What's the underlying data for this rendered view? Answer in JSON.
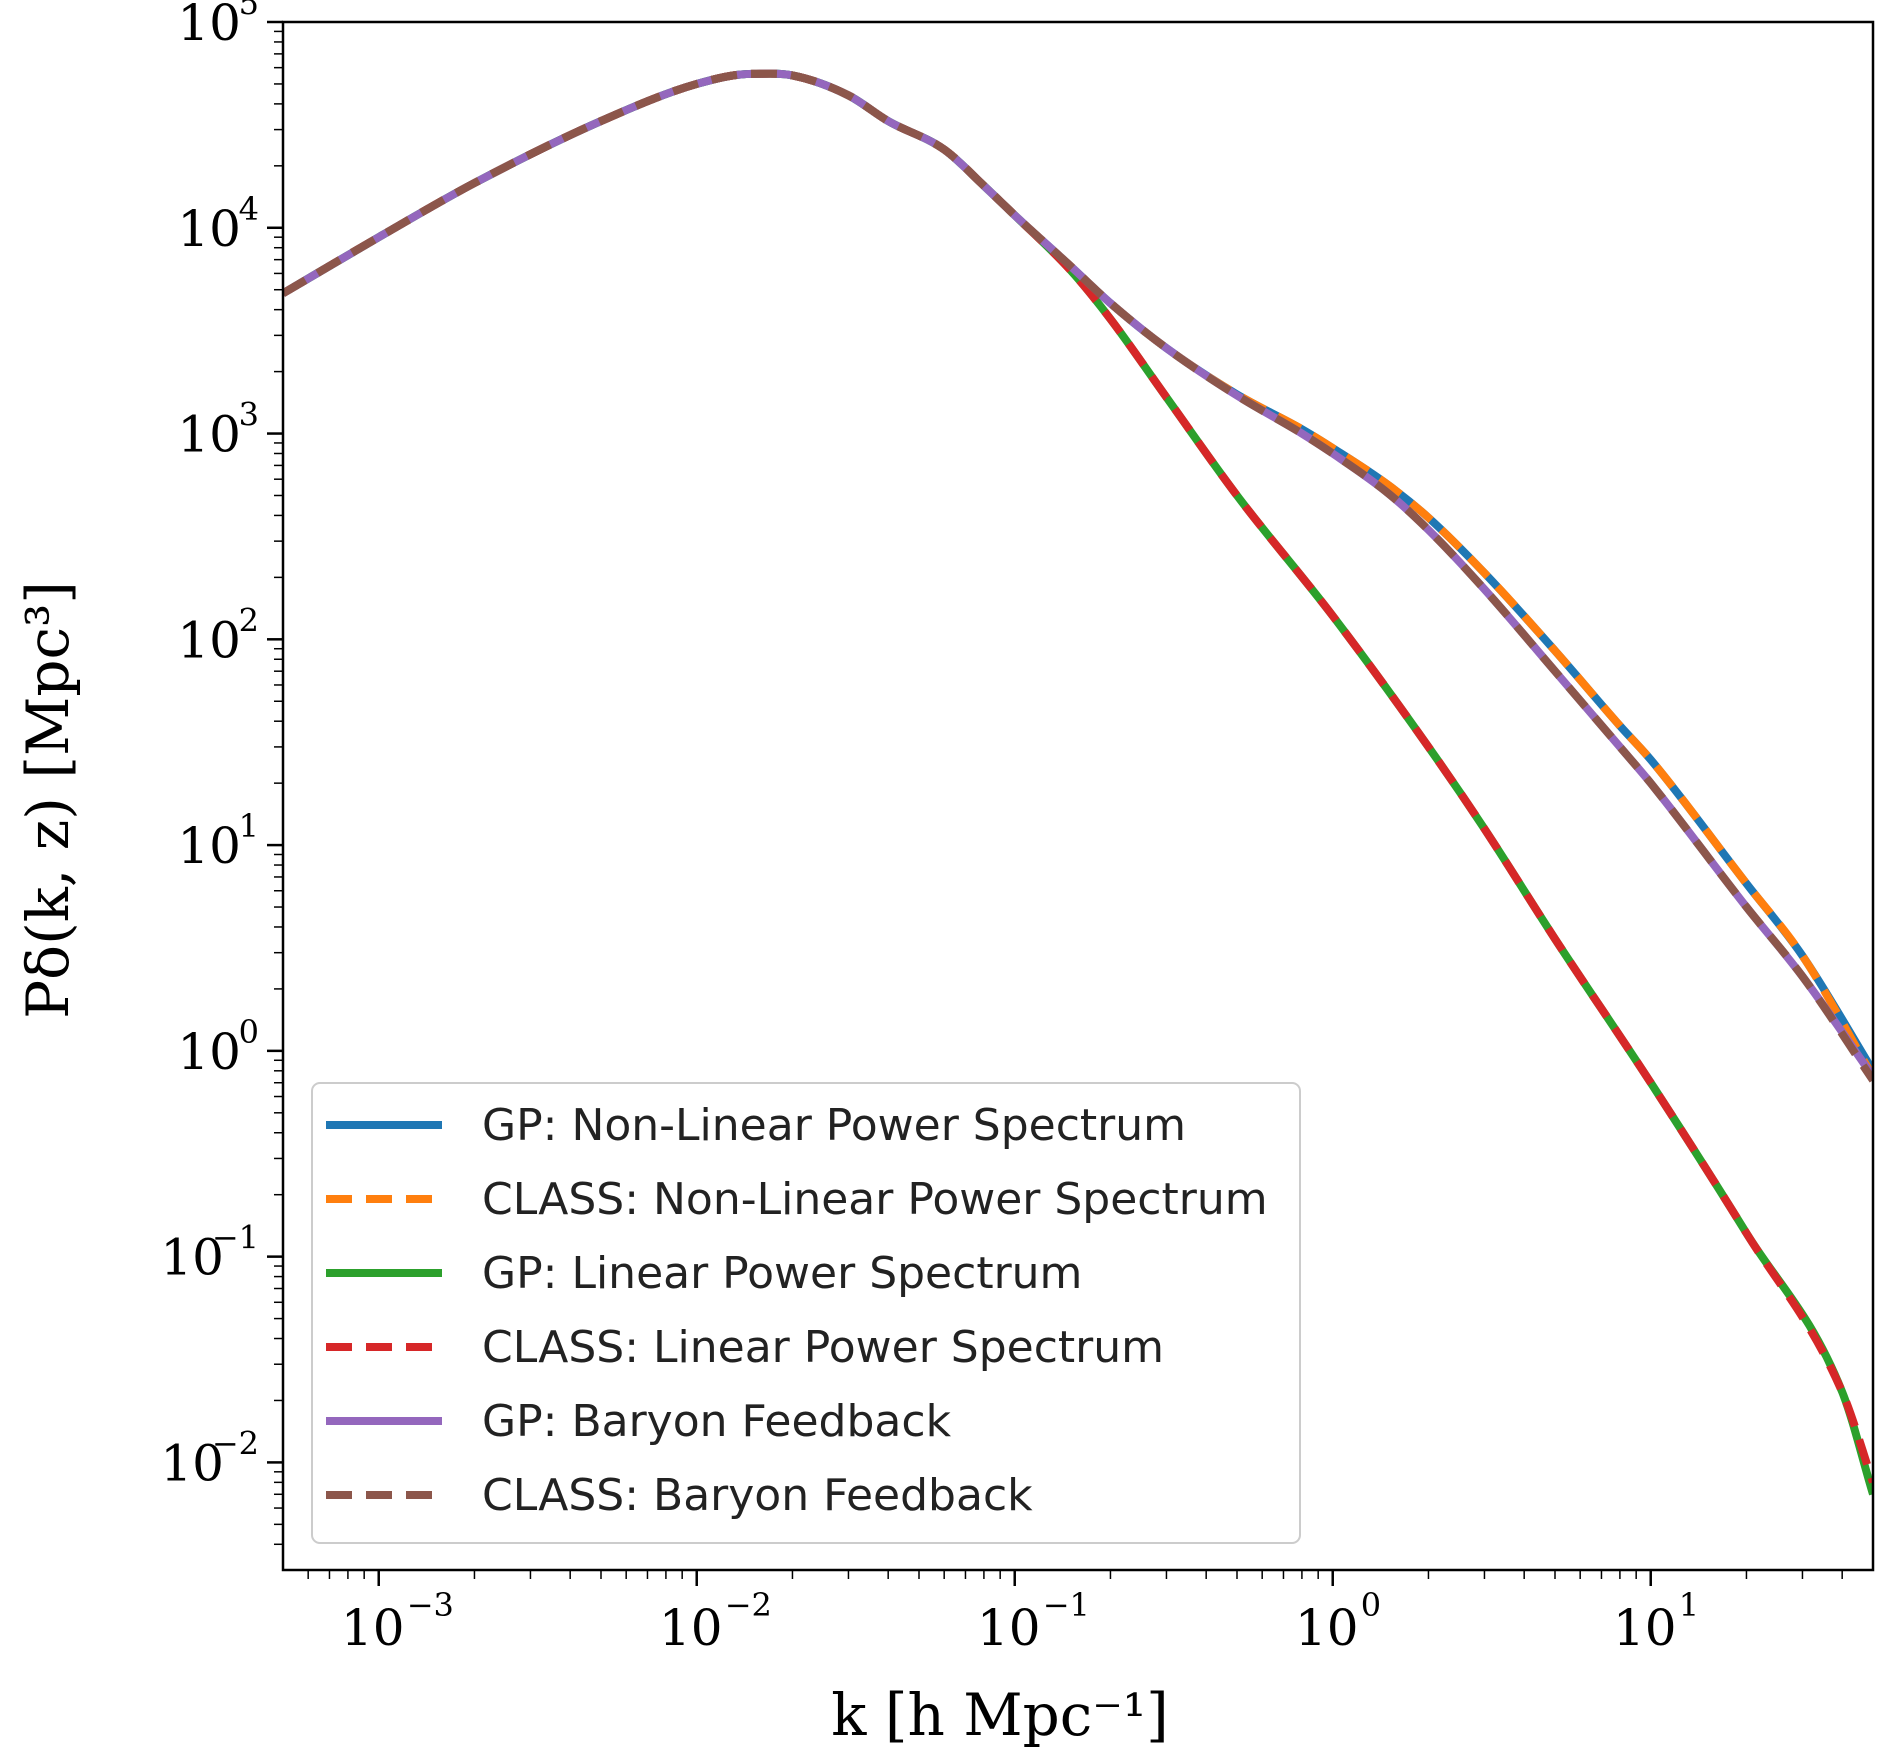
{
  "chart_data": {
    "type": "line",
    "title": "",
    "xlabel": "k [h Mpc⁻¹]",
    "ylabel": "Pδ(k, z) [Mpc³]",
    "xscale": "log",
    "yscale": "log",
    "xlim": [
      0.0005,
      50
    ],
    "ylim": [
      0.003,
      100000
    ],
    "grid": false,
    "legend_position": "lower-left",
    "x_ticks": [
      {
        "value": 0.001,
        "base": "10",
        "exp": "−3"
      },
      {
        "value": 0.01,
        "base": "10",
        "exp": "−2"
      },
      {
        "value": 0.1,
        "base": "10",
        "exp": "−1"
      },
      {
        "value": 1,
        "base": "10",
        "exp": "0"
      },
      {
        "value": 10,
        "base": "10",
        "exp": "1"
      }
    ],
    "y_ticks": [
      {
        "value": 100000,
        "base": "10",
        "exp": "5"
      },
      {
        "value": 10000,
        "base": "10",
        "exp": "4"
      },
      {
        "value": 1000,
        "base": "10",
        "exp": "3"
      },
      {
        "value": 100,
        "base": "10",
        "exp": "2"
      },
      {
        "value": 10,
        "base": "10",
        "exp": "1"
      },
      {
        "value": 1,
        "base": "10",
        "exp": "0"
      },
      {
        "value": 0.1,
        "base": "10",
        "exp": "−1"
      },
      {
        "value": 0.01,
        "base": "10",
        "exp": "−2"
      }
    ],
    "series": [
      {
        "name": "GP: Non-Linear Power Spectrum",
        "color": "#1f77b4",
        "style": "solid",
        "x": [
          0.0005,
          0.001,
          0.002,
          0.005,
          0.01,
          0.015,
          0.02,
          0.03,
          0.04,
          0.06,
          0.08,
          0.1,
          0.15,
          0.2,
          0.3,
          0.5,
          0.8,
          1,
          1.5,
          2,
          3,
          5,
          8,
          10,
          20,
          30,
          50
        ],
        "y": [
          4800,
          9000,
          16500,
          33000,
          50000,
          56000,
          55000,
          44000,
          33000,
          24000,
          16000,
          11500,
          6500,
          4300,
          2600,
          1550,
          1050,
          850,
          560,
          390,
          210,
          88,
          38,
          26,
          6.5,
          2.9,
          0.8
        ]
      },
      {
        "name": "CLASS: Non-Linear Power Spectrum",
        "color": "#ff7f0e",
        "style": "dashed",
        "x": [
          0.0005,
          0.001,
          0.002,
          0.005,
          0.01,
          0.015,
          0.02,
          0.03,
          0.04,
          0.06,
          0.08,
          0.1,
          0.15,
          0.2,
          0.3,
          0.5,
          0.8,
          1,
          1.5,
          2,
          3,
          5,
          8,
          10,
          20,
          30,
          50
        ],
        "y": [
          4800,
          9000,
          16500,
          33000,
          50000,
          56000,
          55000,
          44000,
          33000,
          24000,
          16000,
          11500,
          6500,
          4300,
          2600,
          1550,
          1050,
          850,
          560,
          390,
          210,
          88,
          38,
          26,
          6.5,
          2.9,
          0.75
        ]
      },
      {
        "name": "GP: Linear Power Spectrum",
        "color": "#2ca02c",
        "style": "solid",
        "x": [
          0.0005,
          0.001,
          0.002,
          0.005,
          0.01,
          0.015,
          0.02,
          0.03,
          0.04,
          0.06,
          0.08,
          0.1,
          0.15,
          0.2,
          0.3,
          0.5,
          1,
          2,
          3,
          5,
          10,
          20,
          40,
          50
        ],
        "y": [
          4800,
          9000,
          16500,
          33000,
          50000,
          56000,
          55000,
          44000,
          33000,
          24000,
          16000,
          11500,
          6200,
          3600,
          1500,
          500,
          130,
          30,
          12,
          3.5,
          0.7,
          0.13,
          0.022,
          0.007
        ]
      },
      {
        "name": "CLASS: Linear Power Spectrum",
        "color": "#d62728",
        "style": "dashed",
        "x": [
          0.0005,
          0.001,
          0.002,
          0.005,
          0.01,
          0.015,
          0.02,
          0.03,
          0.04,
          0.06,
          0.08,
          0.1,
          0.15,
          0.2,
          0.3,
          0.5,
          1,
          2,
          3,
          5,
          10,
          20,
          40,
          50
        ],
        "y": [
          4800,
          9000,
          16500,
          33000,
          50000,
          56000,
          55000,
          44000,
          33000,
          24000,
          16000,
          11500,
          6200,
          3600,
          1500,
          500,
          130,
          30,
          12,
          3.5,
          0.7,
          0.13,
          0.022,
          0.008
        ]
      },
      {
        "name": "GP: Baryon Feedback",
        "color": "#9467bd",
        "style": "solid",
        "x": [
          0.0005,
          0.001,
          0.002,
          0.005,
          0.01,
          0.015,
          0.02,
          0.03,
          0.04,
          0.06,
          0.08,
          0.1,
          0.15,
          0.2,
          0.3,
          0.5,
          0.8,
          1,
          1.5,
          2,
          3,
          5,
          8,
          10,
          20,
          30,
          50
        ],
        "y": [
          4800,
          9000,
          16500,
          33000,
          50000,
          56000,
          55000,
          44000,
          33000,
          24000,
          16000,
          11500,
          6500,
          4300,
          2600,
          1530,
          1000,
          800,
          510,
          340,
          175,
          70,
          30,
          20,
          5,
          2.3,
          0.75
        ]
      },
      {
        "name": "CLASS: Baryon Feedback",
        "color": "#8c564b",
        "style": "dashed",
        "x": [
          0.0005,
          0.001,
          0.002,
          0.005,
          0.01,
          0.015,
          0.02,
          0.03,
          0.04,
          0.06,
          0.08,
          0.1,
          0.15,
          0.2,
          0.3,
          0.5,
          0.8,
          1,
          1.5,
          2,
          3,
          5,
          8,
          10,
          20,
          30,
          50
        ],
        "y": [
          4800,
          9000,
          16500,
          33000,
          50000,
          56000,
          55000,
          44000,
          33000,
          24000,
          16000,
          11500,
          6500,
          4300,
          2600,
          1530,
          1000,
          800,
          510,
          340,
          175,
          70,
          30,
          20,
          5,
          2.3,
          0.72
        ]
      }
    ]
  }
}
